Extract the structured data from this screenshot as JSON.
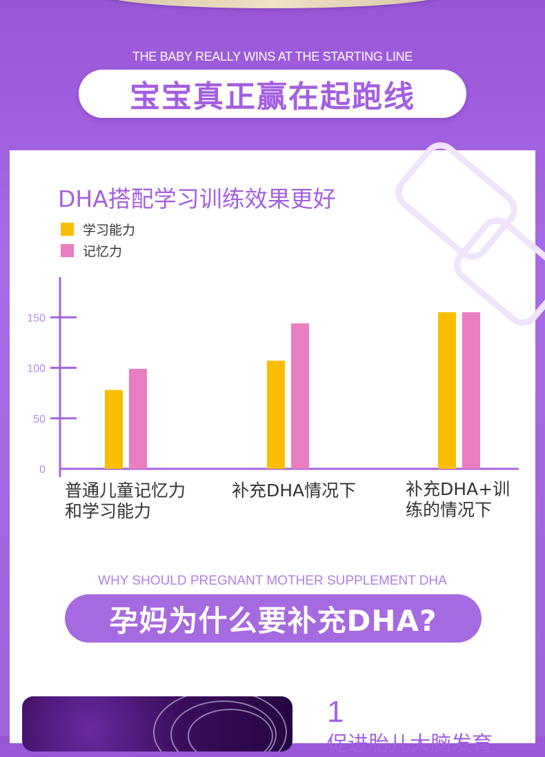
{
  "header": {
    "en_title": "THE BABY REALLY WINS AT THE STARTING LINE",
    "cn_title": "宝宝真正赢在起跑线"
  },
  "chart_data": {
    "type": "bar",
    "title": "DHA搭配学习训练效果更好",
    "categories": [
      "普通儿童记忆力和学习能力",
      "补充DHA情况下",
      "补充DHA+训练的情况下"
    ],
    "category_lines": [
      [
        "普通儿童记忆力",
        "和学习能力"
      ],
      [
        "补充DHA情况下"
      ],
      [
        "补充DHA+训",
        "练的情况下"
      ]
    ],
    "series": [
      {
        "name": "学习能力",
        "values": [
          78,
          107,
          155
        ]
      },
      {
        "name": "记忆力",
        "values": [
          99,
          144,
          155
        ]
      }
    ],
    "y_ticks": [
      0,
      50,
      100,
      150
    ],
    "ylim": [
      0,
      175
    ],
    "colors": [
      "#fbbd00",
      "#e87dc1"
    ],
    "axis_color": "#a663e0",
    "legend_position": "top-left",
    "grid": false
  },
  "section2": {
    "en_title": "WHY SHOULD PREGNANT MOTHER SUPPLEMENT DHA",
    "cn_title": "孕妈为什么要补充DHA?"
  },
  "point1": {
    "number": "1",
    "text": "促进胎儿大脑发育"
  }
}
